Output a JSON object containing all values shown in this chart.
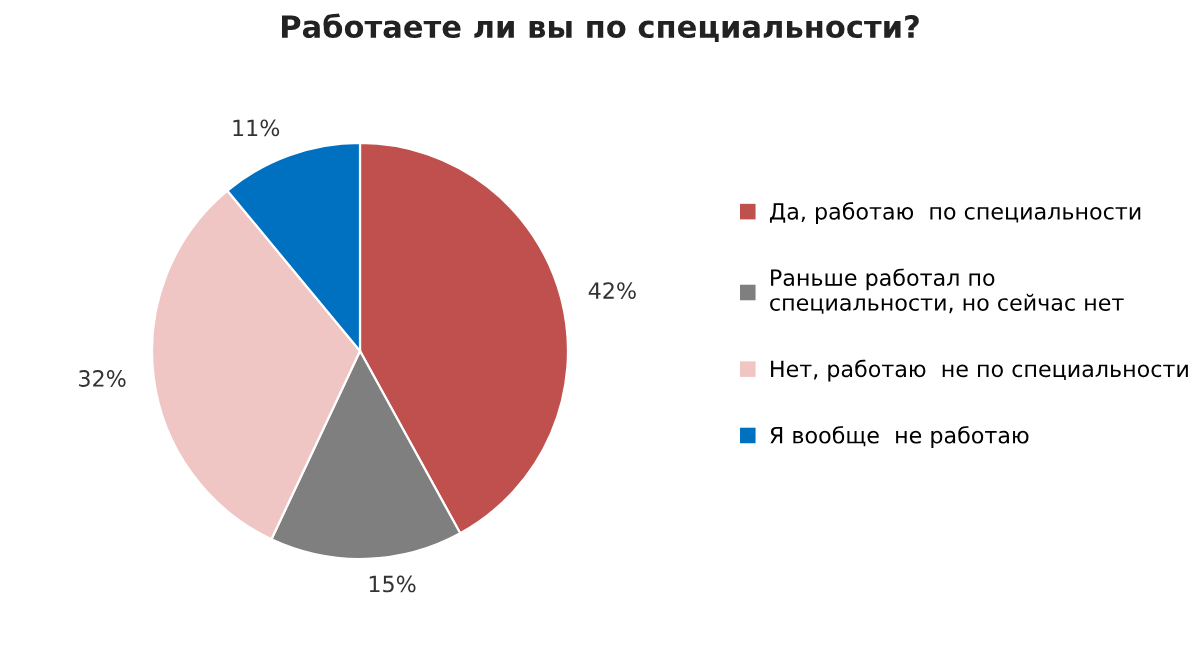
{
  "chart_data": {
    "type": "pie",
    "title": "Работаете ли вы по специальности?",
    "categories": [
      "Да, работаю  по специальности",
      "Раньше работал по\nспециальности, но сейчас нет",
      "Нет, работаю  не по специальности",
      "Я вообще  не работаю"
    ],
    "values": [
      42,
      15,
      32,
      11
    ],
    "value_labels": [
      "42%",
      "15%",
      "32%",
      "11%"
    ],
    "colors": [
      "#c0504d",
      "#7f7f7f",
      "#f0c6c5",
      "#0070c0"
    ],
    "legend": "right"
  }
}
